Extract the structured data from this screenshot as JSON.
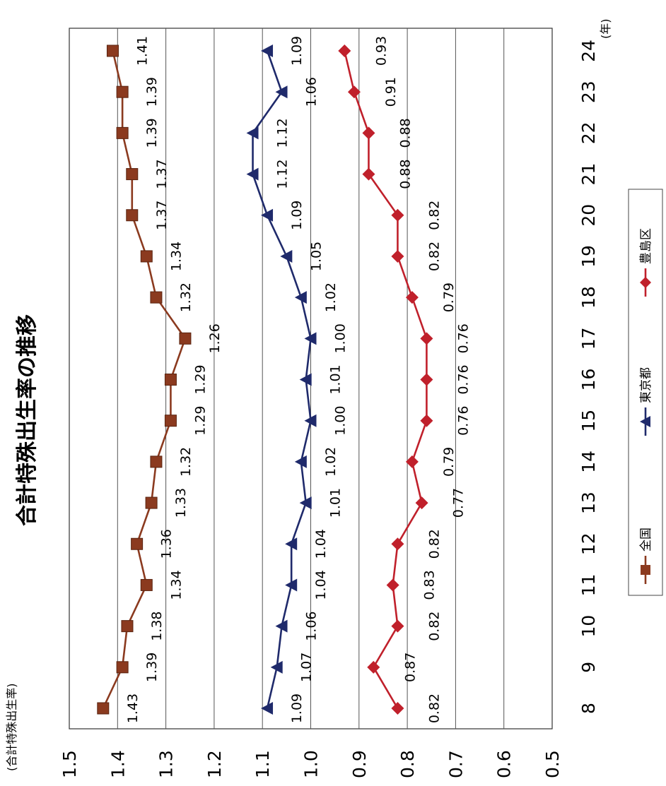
{
  "title": "合計特殊出生率の推移",
  "ylabel": "(合計特殊出生率)",
  "xunit": "(年)",
  "chart_data": {
    "type": "line",
    "title": "合計特殊出生率の推移",
    "ylabel": "(合計特殊出生率)",
    "xlabel": "(年)",
    "categories": [
      "8",
      "9",
      "10",
      "11",
      "12",
      "13",
      "14",
      "15",
      "16",
      "17",
      "18",
      "19",
      "20",
      "21",
      "22",
      "23",
      "24"
    ],
    "ylim": [
      0.5,
      1.5
    ],
    "yticks": [
      "1.5",
      "1.4",
      "1.3",
      "1.2",
      "1.1",
      "1.0",
      "0.9",
      "0.8",
      "0.7",
      "0.6",
      "0.5"
    ],
    "grid": true,
    "legend_position": "bottom-right",
    "series": [
      {
        "name": "全国",
        "color": "#8B3A1F",
        "marker": "square",
        "values": [
          1.43,
          1.39,
          1.38,
          1.34,
          1.36,
          1.33,
          1.32,
          1.29,
          1.29,
          1.26,
          1.32,
          1.34,
          1.37,
          1.37,
          1.39,
          1.39,
          1.41
        ]
      },
      {
        "name": "東京都",
        "color": "#1F2A6B",
        "marker": "triangle",
        "values": [
          1.09,
          1.07,
          1.06,
          1.04,
          1.04,
          1.01,
          1.02,
          1.0,
          1.01,
          1.0,
          1.02,
          1.05,
          1.09,
          1.12,
          1.12,
          1.06,
          1.09
        ]
      },
      {
        "name": "豊島区",
        "color": "#C0202B",
        "marker": "diamond",
        "values": [
          0.82,
          0.87,
          0.82,
          0.83,
          0.82,
          0.77,
          0.79,
          0.76,
          0.76,
          0.76,
          0.79,
          0.82,
          0.82,
          0.88,
          0.88,
          0.91,
          0.93
        ]
      }
    ]
  }
}
